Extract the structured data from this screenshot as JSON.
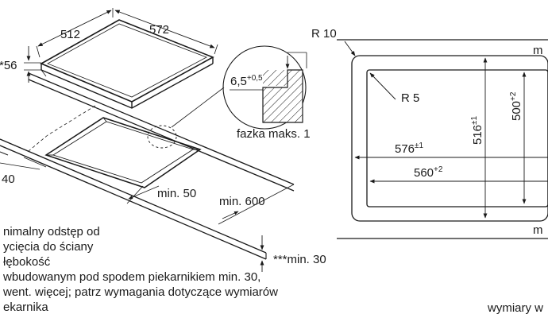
{
  "left_drawing": {
    "hob": {
      "depth_label": "512",
      "width_label": "572",
      "height_label": "*56"
    },
    "detail": {
      "value": "6,5",
      "tolerance": "+0,5",
      "caption": "fazka maks. 1"
    },
    "cutout": {
      "front_offset_label": "40",
      "side_min_label": "min. 50",
      "depth_min_label": "min. 600",
      "wall_min_label": "***min. 30"
    },
    "footnotes": [
      "nimalny odstęp od",
      "ycięcia do ściany",
      "łębokość",
      "wbudowanym pod spodem piekarnikiem min. 30,",
      "went. więcej; patrz wymagania dotyczące wymiarów",
      "ekarnika"
    ]
  },
  "right_drawing": {
    "outer_radius_label": "R 10",
    "inner_radius_label": "R 5",
    "outer_width": "576",
    "outer_width_tol": "±1",
    "inner_width": "560",
    "inner_width_tol": "+2",
    "outer_height": "516",
    "outer_height_tol": "±1",
    "inner_height": "500",
    "inner_height_tol": "+2",
    "edge_label_top": "m",
    "edge_label_bottom": "m"
  },
  "footer_caption": "wymiary w"
}
